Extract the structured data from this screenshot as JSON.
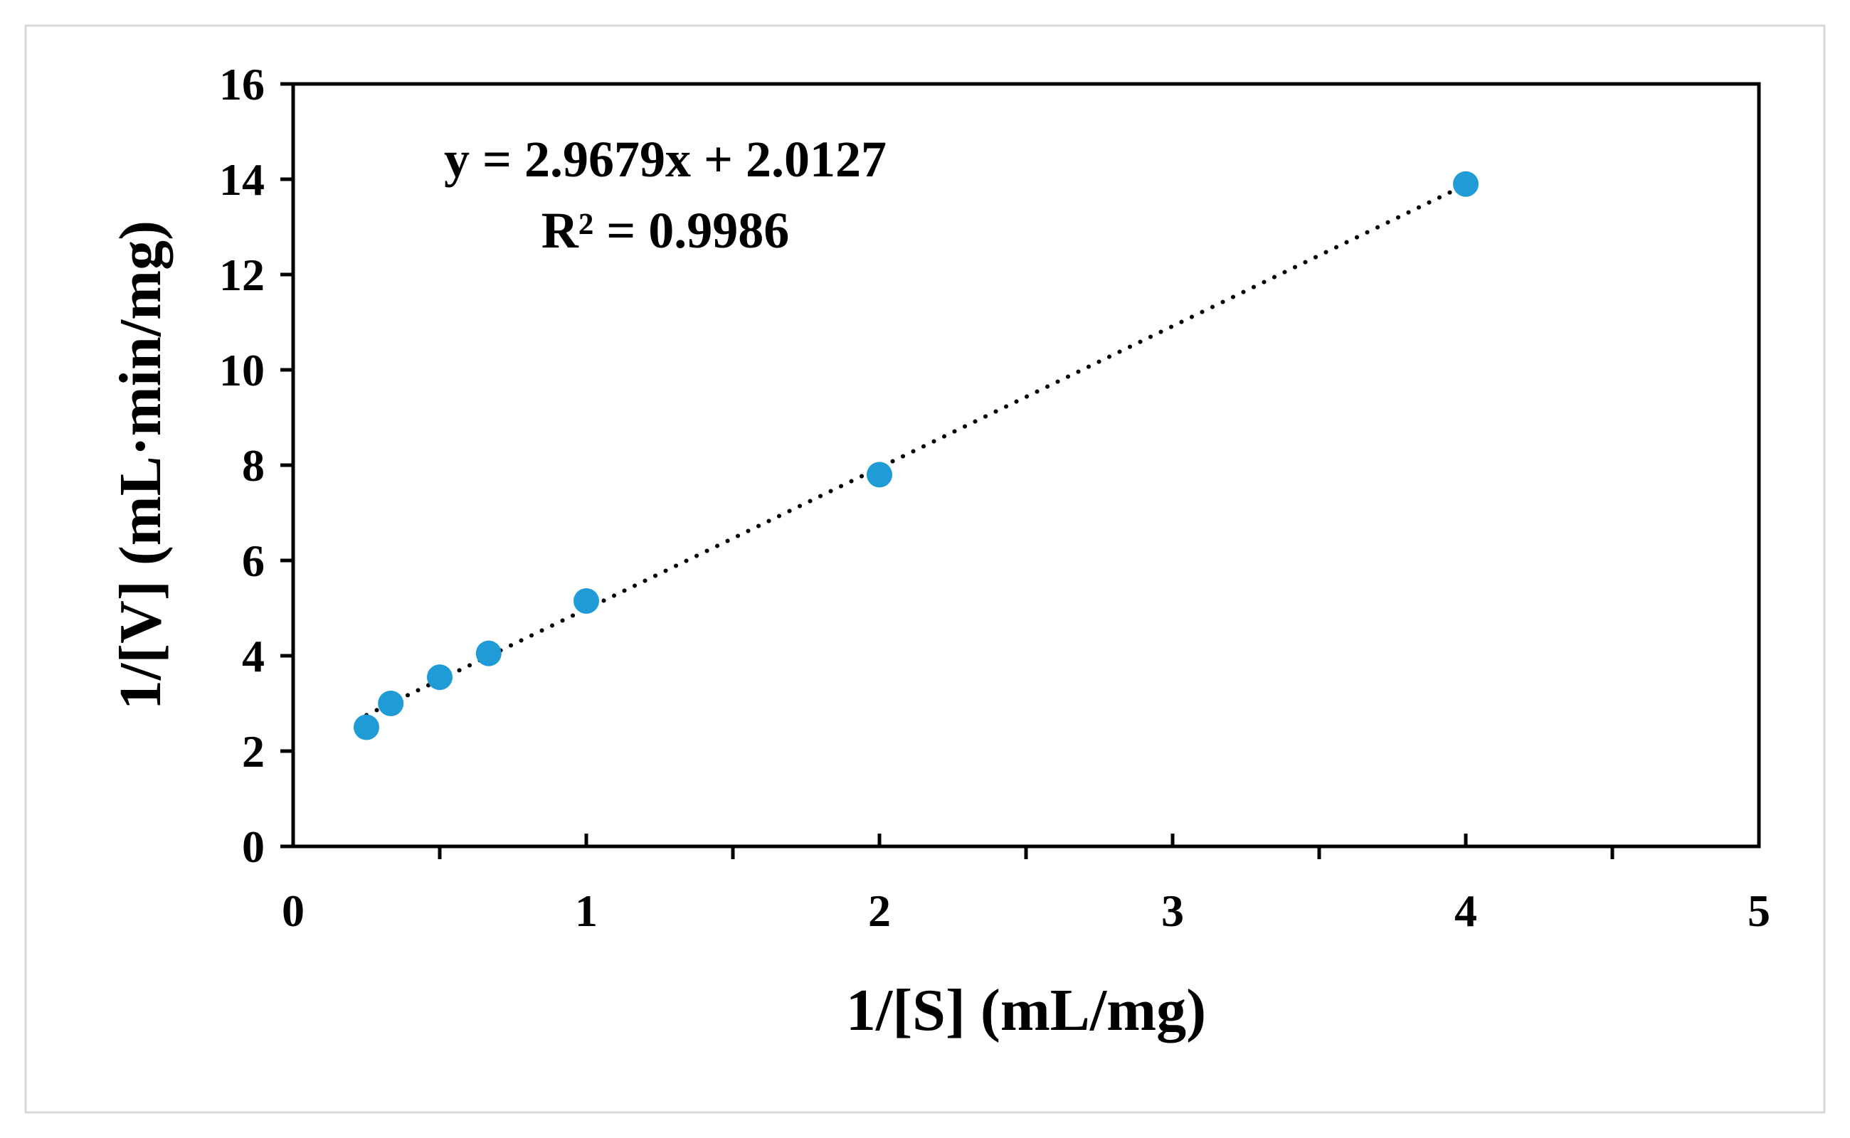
{
  "chart_data": {
    "type": "scatter",
    "xlabel": "1/[S] (mL/mg)",
    "ylabel": "1/[V] (mL·min/mg)",
    "xlim": [
      0,
      5
    ],
    "ylim": [
      0,
      16
    ],
    "x_ticks": [
      0,
      1,
      2,
      3,
      4,
      5
    ],
    "y_ticks": [
      0,
      2,
      4,
      6,
      8,
      10,
      12,
      14,
      16
    ],
    "x_minor_ticks": [
      0.5,
      1.5,
      2.5,
      3.5,
      4.5
    ],
    "grid": false,
    "legend": "none",
    "series": [
      {
        "x": [
          0.25,
          0.333,
          0.5,
          0.667,
          1.0,
          2.0,
          4.0
        ],
        "y": [
          2.5,
          3.0,
          3.55,
          4.05,
          5.15,
          7.8,
          13.9
        ],
        "color": "#1f9bd6"
      }
    ],
    "trendline": {
      "style": "dotted",
      "color": "#000000",
      "slope": 2.9679,
      "intercept": 2.0127,
      "x_range": [
        0.25,
        4.0
      ]
    },
    "annotations": [
      {
        "text": "y = 2.9679x + 2.0127"
      },
      {
        "text": "R² = 0.9986"
      }
    ]
  }
}
